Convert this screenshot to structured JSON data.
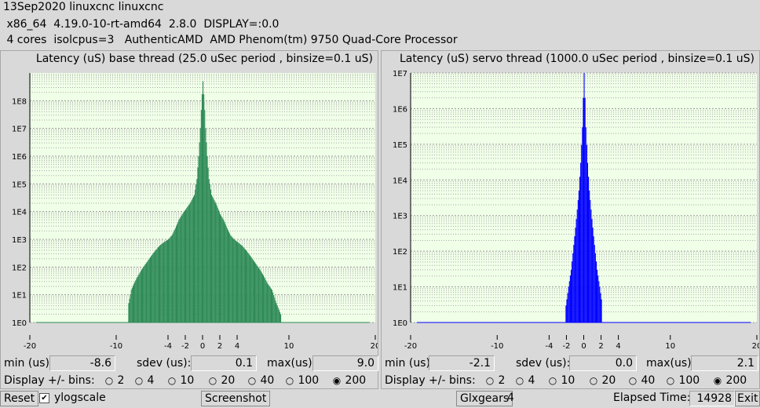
{
  "header": {
    "line1": "13Sep2020 linuxcnc linuxcnc",
    "line2": " x86_64  4.19.0-10-rt-amd64  2.8.0  DISPLAY=:0.0",
    "line3": " 4 cores  isolcpus=3   AuthenticAMD  AMD Phenom(tm) 9750 Quad-Core Processor"
  },
  "colors": {
    "base_bars": "#2e8b57",
    "servo_bars": "#0000ff",
    "plot_bg": "#f0ffe8"
  },
  "panels": [
    {
      "title": "Latency (uS) base thread (25.0 uSec period , binsize=0.1 uS)",
      "stats": {
        "min_label": "min (us)",
        "min": "-8.6",
        "sdev_label": "sdev (us):",
        "sdev": "0.1",
        "max_label": "max(us)",
        "max": "9.0"
      },
      "bins_label": "Display +/- bins:",
      "bins_options": [
        "2",
        "4",
        "10",
        "20",
        "40",
        "100",
        "200"
      ],
      "bins_selected": "200",
      "chart_data": {
        "type": "bar",
        "yscale": "log",
        "ylim": [
          1,
          1000000000.0
        ],
        "xlim": [
          -20,
          20
        ],
        "x_ticks": [
          "-20",
          "-10",
          "-4",
          "-2",
          "0",
          "2",
          "4",
          "10",
          "20"
        ],
        "x_tick_values": [
          -20,
          -10,
          -4,
          -2,
          0,
          2,
          4,
          10,
          20
        ],
        "y_ticks": [
          "1E0",
          "1E1",
          "1E2",
          "1E3",
          "1E4",
          "1E5",
          "1E6",
          "1E7",
          "1E8"
        ],
        "profile_x": [
          -8.6,
          -8.3,
          -8,
          -7.5,
          -7,
          -6.5,
          -6,
          -5.5,
          -5,
          -4.5,
          -4,
          -3.6,
          -3.2,
          -2.8,
          -2.4,
          -2,
          -1.5,
          -1,
          -0.7,
          -0.5,
          -0.3,
          -0.15,
          0,
          0.15,
          0.3,
          0.5,
          0.7,
          1,
          1.5,
          2,
          2.4,
          2.8,
          3.2,
          3.6,
          4,
          4.5,
          5,
          5.5,
          6,
          6.5,
          7,
          7.5,
          8,
          8.5,
          9.0
        ],
        "profile_y": [
          5,
          15,
          25,
          50,
          90,
          150,
          250,
          400,
          600,
          800,
          1000,
          1400,
          2500,
          5000,
          8000,
          12000,
          20000,
          40000,
          150000,
          1000000,
          10000000,
          100000000,
          500000000,
          100000000,
          10000000,
          1000000,
          150000,
          40000,
          20000,
          8000,
          5000,
          2500,
          1400,
          1000,
          800,
          600,
          400,
          250,
          150,
          90,
          50,
          25,
          15,
          5,
          2
        ]
      }
    },
    {
      "title": "Latency (uS) servo thread (1000.0 uSec period , binsize=0.1 uS)",
      "stats": {
        "min_label": "min (us)",
        "min": "-2.1",
        "sdev_label": "sdev (us):",
        "sdev": "0.0",
        "max_label": "max(us)",
        "max": "2.1"
      },
      "bins_label": "Display +/- bins:",
      "bins_options": [
        "2",
        "4",
        "10",
        "20",
        "40",
        "100",
        "200"
      ],
      "bins_selected": "200",
      "chart_data": {
        "type": "bar",
        "yscale": "log",
        "ylim": [
          1,
          10000000.0
        ],
        "xlim": [
          -20,
          20
        ],
        "x_ticks": [
          "-20",
          "-10",
          "-4",
          "-2",
          "0",
          "2",
          "4",
          "10",
          "20"
        ],
        "x_tick_values": [
          -20,
          -10,
          -4,
          -2,
          0,
          2,
          4,
          10,
          20
        ],
        "y_ticks": [
          "1E0",
          "1E1",
          "1E2",
          "1E3",
          "1E4",
          "1E5",
          "1E6",
          "1E7"
        ],
        "profile_x": [
          -2.1,
          -1.8,
          -1.5,
          -1.2,
          -0.9,
          -0.6,
          -0.4,
          -0.2,
          -0.1,
          0,
          0.1,
          0.2,
          0.4,
          0.6,
          0.9,
          1.2,
          1.5,
          1.8,
          2.1
        ],
        "profile_y": [
          3,
          10,
          30,
          150,
          800,
          5000,
          30000,
          300000,
          2000000,
          10000000,
          2000000,
          300000,
          30000,
          5000,
          800,
          150,
          30,
          10,
          3
        ]
      }
    }
  ],
  "bottom": {
    "reset_label": "Reset",
    "ylogscale_label": "ylogscale",
    "ylogscale_checked": true,
    "screenshot_label": "Screenshot",
    "glxgears_label": "Glxgears",
    "glxgears_count": "4",
    "elapsed_label": "Elapsed Time:",
    "elapsed_value": "14928",
    "exit_label": "Exit"
  }
}
